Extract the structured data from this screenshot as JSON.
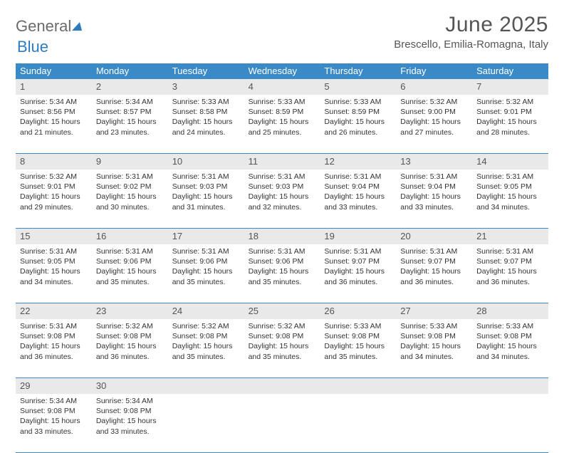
{
  "logo": {
    "text1": "General",
    "text2": "Blue"
  },
  "title": "June 2025",
  "location": "Brescello, Emilia-Romagna, Italy",
  "colors": {
    "header_bg": "#3a8ac8",
    "header_text": "#ffffff",
    "daynum_bg": "#e9e9e9",
    "border": "#3a8ac8",
    "body_text": "#333333",
    "logo_gray": "#6b6b6b",
    "logo_blue": "#2f7bbf"
  },
  "day_names": [
    "Sunday",
    "Monday",
    "Tuesday",
    "Wednesday",
    "Thursday",
    "Friday",
    "Saturday"
  ],
  "weeks": [
    [
      {
        "n": "1",
        "sr": "5:34 AM",
        "ss": "8:56 PM",
        "dl1": "15 hours",
        "dl2": "and 21 minutes."
      },
      {
        "n": "2",
        "sr": "5:34 AM",
        "ss": "8:57 PM",
        "dl1": "15 hours",
        "dl2": "and 23 minutes."
      },
      {
        "n": "3",
        "sr": "5:33 AM",
        "ss": "8:58 PM",
        "dl1": "15 hours",
        "dl2": "and 24 minutes."
      },
      {
        "n": "4",
        "sr": "5:33 AM",
        "ss": "8:59 PM",
        "dl1": "15 hours",
        "dl2": "and 25 minutes."
      },
      {
        "n": "5",
        "sr": "5:33 AM",
        "ss": "8:59 PM",
        "dl1": "15 hours",
        "dl2": "and 26 minutes."
      },
      {
        "n": "6",
        "sr": "5:32 AM",
        "ss": "9:00 PM",
        "dl1": "15 hours",
        "dl2": "and 27 minutes."
      },
      {
        "n": "7",
        "sr": "5:32 AM",
        "ss": "9:01 PM",
        "dl1": "15 hours",
        "dl2": "and 28 minutes."
      }
    ],
    [
      {
        "n": "8",
        "sr": "5:32 AM",
        "ss": "9:01 PM",
        "dl1": "15 hours",
        "dl2": "and 29 minutes."
      },
      {
        "n": "9",
        "sr": "5:31 AM",
        "ss": "9:02 PM",
        "dl1": "15 hours",
        "dl2": "and 30 minutes."
      },
      {
        "n": "10",
        "sr": "5:31 AM",
        "ss": "9:03 PM",
        "dl1": "15 hours",
        "dl2": "and 31 minutes."
      },
      {
        "n": "11",
        "sr": "5:31 AM",
        "ss": "9:03 PM",
        "dl1": "15 hours",
        "dl2": "and 32 minutes."
      },
      {
        "n": "12",
        "sr": "5:31 AM",
        "ss": "9:04 PM",
        "dl1": "15 hours",
        "dl2": "and 33 minutes."
      },
      {
        "n": "13",
        "sr": "5:31 AM",
        "ss": "9:04 PM",
        "dl1": "15 hours",
        "dl2": "and 33 minutes."
      },
      {
        "n": "14",
        "sr": "5:31 AM",
        "ss": "9:05 PM",
        "dl1": "15 hours",
        "dl2": "and 34 minutes."
      }
    ],
    [
      {
        "n": "15",
        "sr": "5:31 AM",
        "ss": "9:05 PM",
        "dl1": "15 hours",
        "dl2": "and 34 minutes."
      },
      {
        "n": "16",
        "sr": "5:31 AM",
        "ss": "9:06 PM",
        "dl1": "15 hours",
        "dl2": "and 35 minutes."
      },
      {
        "n": "17",
        "sr": "5:31 AM",
        "ss": "9:06 PM",
        "dl1": "15 hours",
        "dl2": "and 35 minutes."
      },
      {
        "n": "18",
        "sr": "5:31 AM",
        "ss": "9:06 PM",
        "dl1": "15 hours",
        "dl2": "and 35 minutes."
      },
      {
        "n": "19",
        "sr": "5:31 AM",
        "ss": "9:07 PM",
        "dl1": "15 hours",
        "dl2": "and 36 minutes."
      },
      {
        "n": "20",
        "sr": "5:31 AM",
        "ss": "9:07 PM",
        "dl1": "15 hours",
        "dl2": "and 36 minutes."
      },
      {
        "n": "21",
        "sr": "5:31 AM",
        "ss": "9:07 PM",
        "dl1": "15 hours",
        "dl2": "and 36 minutes."
      }
    ],
    [
      {
        "n": "22",
        "sr": "5:31 AM",
        "ss": "9:08 PM",
        "dl1": "15 hours",
        "dl2": "and 36 minutes."
      },
      {
        "n": "23",
        "sr": "5:32 AM",
        "ss": "9:08 PM",
        "dl1": "15 hours",
        "dl2": "and 36 minutes."
      },
      {
        "n": "24",
        "sr": "5:32 AM",
        "ss": "9:08 PM",
        "dl1": "15 hours",
        "dl2": "and 35 minutes."
      },
      {
        "n": "25",
        "sr": "5:32 AM",
        "ss": "9:08 PM",
        "dl1": "15 hours",
        "dl2": "and 35 minutes."
      },
      {
        "n": "26",
        "sr": "5:33 AM",
        "ss": "9:08 PM",
        "dl1": "15 hours",
        "dl2": "and 35 minutes."
      },
      {
        "n": "27",
        "sr": "5:33 AM",
        "ss": "9:08 PM",
        "dl1": "15 hours",
        "dl2": "and 34 minutes."
      },
      {
        "n": "28",
        "sr": "5:33 AM",
        "ss": "9:08 PM",
        "dl1": "15 hours",
        "dl2": "and 34 minutes."
      }
    ],
    [
      {
        "n": "29",
        "sr": "5:34 AM",
        "ss": "9:08 PM",
        "dl1": "15 hours",
        "dl2": "and 33 minutes."
      },
      {
        "n": "30",
        "sr": "5:34 AM",
        "ss": "9:08 PM",
        "dl1": "15 hours",
        "dl2": "and 33 minutes."
      },
      null,
      null,
      null,
      null,
      null
    ]
  ],
  "labels": {
    "sunrise": "Sunrise:",
    "sunset": "Sunset:",
    "daylight": "Daylight:"
  }
}
